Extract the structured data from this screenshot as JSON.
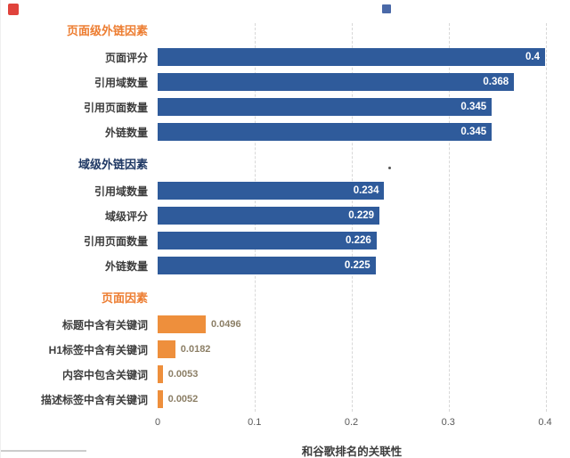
{
  "decorations": {
    "top_left_icon": "red-marker-icon",
    "top_right_icon": "blue-square-icon",
    "stray_dot": "small-dot"
  },
  "chart_data": {
    "type": "bar",
    "orientation": "horizontal",
    "xlabel": "和谷歌排名的关联性",
    "xlim": [
      0,
      0.4
    ],
    "xticks": [
      0,
      0.1,
      0.2,
      0.3,
      0.4
    ],
    "xtick_labels": [
      "0",
      "0.1",
      "0.2",
      "0.3",
      "0.4"
    ],
    "grid": "dashed-vertical",
    "colors": {
      "blue_bar": "#2F5B9B",
      "orange_bar": "#EE8F3C",
      "orange_header": "#ED7D31",
      "navy_header": "#1F3864",
      "inside_value_text": "#ffffff",
      "outside_value_text": "#8c7f66"
    },
    "groups": [
      {
        "title": "页面级外链因素",
        "title_color": "#ED7D31",
        "bar_color": "#2F5B9B",
        "value_label_style": "inside-white",
        "rows": [
          {
            "label": "页面评分",
            "value": 0.4,
            "value_label": "0.4"
          },
          {
            "label": "引用域数量",
            "value": 0.368,
            "value_label": "0.368"
          },
          {
            "label": "引用页面数量",
            "value": 0.345,
            "value_label": "0.345"
          },
          {
            "label": "外链数量",
            "value": 0.345,
            "value_label": "0.345"
          }
        ]
      },
      {
        "title": "域级外链因素",
        "title_color": "#1F3864",
        "bar_color": "#2F5B9B",
        "value_label_style": "inside-white",
        "rows": [
          {
            "label": "引用域数量",
            "value": 0.234,
            "value_label": "0.234"
          },
          {
            "label": "域级评分",
            "value": 0.229,
            "value_label": "0.229"
          },
          {
            "label": "引用页面数量",
            "value": 0.226,
            "value_label": "0.226"
          },
          {
            "label": "外链数量",
            "value": 0.225,
            "value_label": "0.225"
          }
        ]
      },
      {
        "title": "页面因素",
        "title_color": "#ED7D31",
        "bar_color": "#EE8F3C",
        "value_label_style": "outside-dark",
        "rows": [
          {
            "label": "标题中含有关键词",
            "value": 0.0496,
            "value_label": "0.0496"
          },
          {
            "label": "H1标签中含有关键词",
            "value": 0.0182,
            "value_label": "0.0182"
          },
          {
            "label": "内容中包含关键词",
            "value": 0.0053,
            "value_label": "0.0053"
          },
          {
            "label": "描述标签中含有关键词",
            "value": 0.0052,
            "value_label": "0.0052"
          }
        ]
      }
    ]
  }
}
